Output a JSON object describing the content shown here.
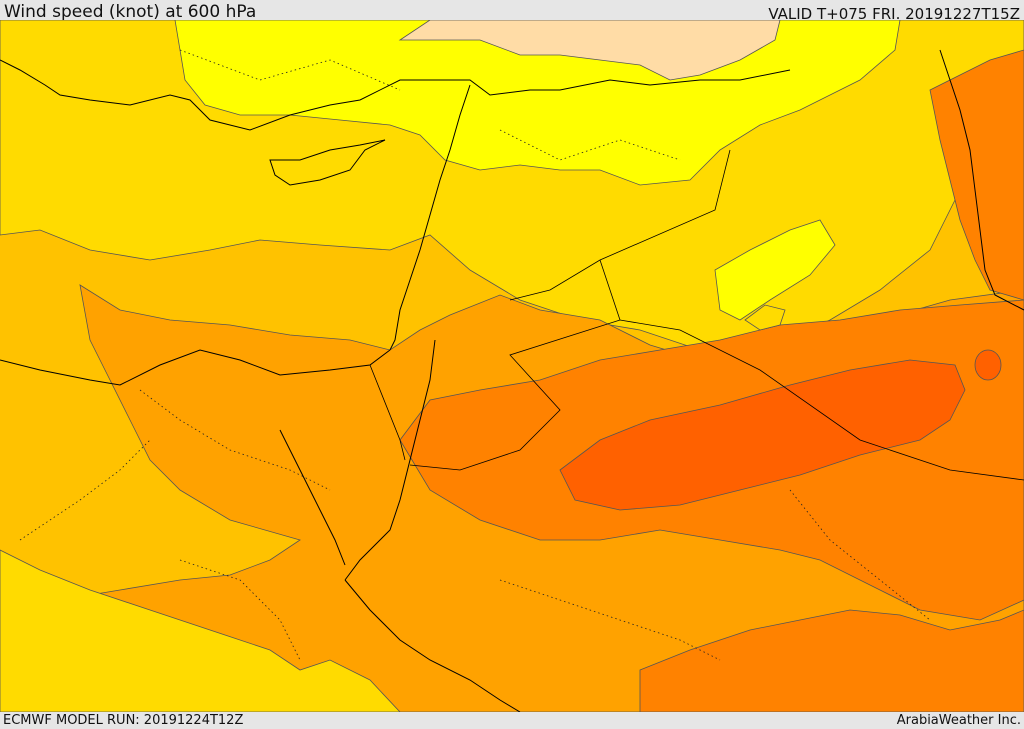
{
  "header": {
    "title": "Wind speed (knot) at 600 hPa",
    "valid": "VALID T+075 FRI. 20191227T15Z"
  },
  "footer": {
    "model_run": "ECMWF MODEL RUN: 20191224T12Z",
    "credit": "ArabiaWeather Inc."
  },
  "map": {
    "field": "wind speed",
    "level": "600 hPa",
    "units": "knot",
    "colors": {
      "band_1": "#ffff00",
      "band_2": "#ffdb00",
      "band_3": "#ffc200",
      "band_4": "#ffa200",
      "band_5": "#ff8200",
      "band_6": "#ff6100",
      "band_light": "#ffdca6",
      "coastline": "#000000",
      "contour": "#555555"
    }
  }
}
